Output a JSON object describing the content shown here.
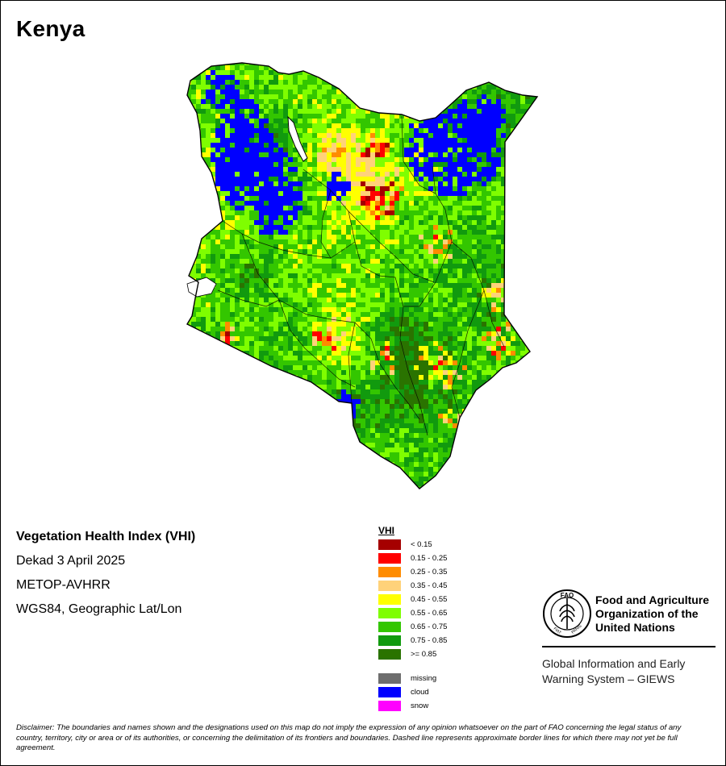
{
  "map_title": "Kenya",
  "product": {
    "heading": "Vegetation Health Index (VHI)",
    "period": "Dekad 3 April 2025",
    "sensor": "METOP-AVHRR",
    "projection": "WGS84, Geographic Lat/Lon"
  },
  "legend": {
    "title": "VHI",
    "classes": [
      {
        "label": "< 0.15",
        "color": "#a50000"
      },
      {
        "label": "0.15 - 0.25",
        "color": "#ff0000"
      },
      {
        "label": "0.25 - 0.35",
        "color": "#ff8c00"
      },
      {
        "label": "0.35 - 0.45",
        "color": "#ffd27a"
      },
      {
        "label": "0.45 - 0.55",
        "color": "#ffff00"
      },
      {
        "label": "0.55 - 0.65",
        "color": "#7ffe00"
      },
      {
        "label": "0.65 - 0.75",
        "color": "#33c600"
      },
      {
        "label": "0.75 - 0.85",
        "color": "#119a0e"
      },
      {
        "label": ">= 0.85",
        "color": "#2a7300"
      }
    ],
    "extra": [
      {
        "label": "missing",
        "color": "#6e6e6e"
      },
      {
        "label": "cloud",
        "color": "#0000ff"
      },
      {
        "label": "snow",
        "color": "#ff00ff"
      }
    ]
  },
  "fao": {
    "logo_text": "FAO",
    "logo_ring_left": "FIAT",
    "logo_ring_right": "PANIS",
    "name_lines": [
      "Food and Agriculture",
      "Organization of the",
      "United Nations"
    ],
    "giews_lines": [
      "Global Information and Early",
      "Warning System – GIEWS"
    ]
  },
  "disclaimer": "Disclaimer: The boundaries and names shown and the designations used on this map do not imply the expression of any opinion whatsoever on the part of FAO concerning the legal status of any country, territory, city or area or of its authorities, or concerning the delimitation of its frontiers and boundaries. Dashed line represents approximate border lines for which there may not yet be full agreement."
}
